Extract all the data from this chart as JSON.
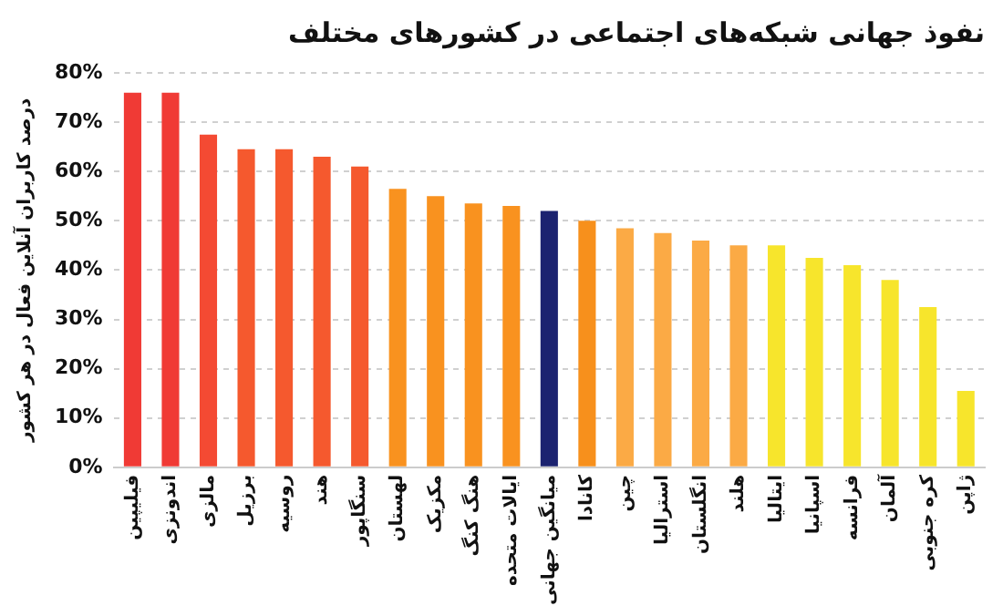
{
  "chart_data": {
    "type": "bar",
    "title": "نفوذ جهانی شبکه‌های اجتماعی در کشورهای مختلف",
    "ylabel": "درصد کاربران آنلاین فعال در هر کشور",
    "categories": [
      "فیلیپین",
      "اندونزی",
      "مالزی",
      "برزیل",
      "روسیه",
      "هند",
      "سنگاپور",
      "لهستان",
      "مکزیک",
      "هنگ کنگ",
      "ایالات متحده",
      "میانگین جهانی",
      "کانادا",
      "چین",
      "استرالیا",
      "انگلستان",
      "هلند",
      "ایتالیا",
      "اسپانیا",
      "فرانسه",
      "آلمان",
      "کره جنوبی",
      "ژاپن"
    ],
    "values": [
      76,
      76,
      67.5,
      64.5,
      64.5,
      63,
      61,
      56.5,
      55,
      53.5,
      53,
      52,
      50,
      48.5,
      47.5,
      46,
      45,
      45,
      42.5,
      41,
      38,
      32.5,
      15.5
    ],
    "colors": [
      "#f03a35",
      "#f03a35",
      "#f44a33",
      "#f5592e",
      "#f5592e",
      "#f5592e",
      "#f5592e",
      "#f9921f",
      "#f9921f",
      "#f9921f",
      "#f9921f",
      "#1c2370",
      "#f7901c",
      "#fbaa45",
      "#fbaa45",
      "#fbaa45",
      "#fbaa45",
      "#f7e52c",
      "#f7e52c",
      "#f7e52c",
      "#f7e52c",
      "#f7e52c",
      "#f7e52c"
    ],
    "ylim": [
      0,
      80
    ],
    "yticks": [
      {
        "value": 0,
        "label": "0%"
      },
      {
        "value": 10,
        "label": "10%"
      },
      {
        "value": 20,
        "label": "20%"
      },
      {
        "value": 30,
        "label": "30%"
      },
      {
        "value": 40,
        "label": "40%"
      },
      {
        "value": 50,
        "label": "50%"
      },
      {
        "value": 60,
        "label": "60%"
      },
      {
        "value": 70,
        "label": "70%"
      },
      {
        "value": 80,
        "label": "80%"
      }
    ],
    "grid": "y",
    "legend": false
  }
}
